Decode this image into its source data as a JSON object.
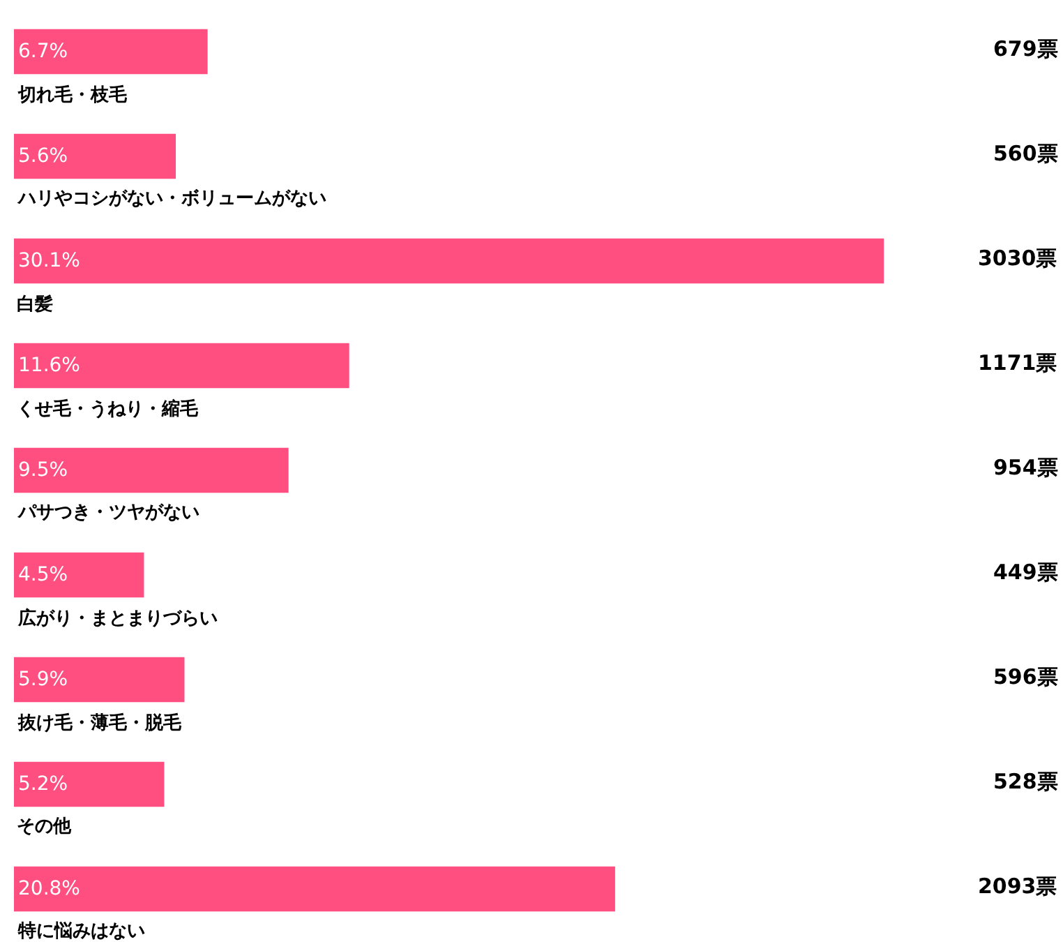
{
  "chart_data": {
    "type": "bar",
    "orientation": "horizontal",
    "tick_labels": false,
    "categories": [
      "切れ毛・枝毛",
      "ハリやコシがない・ボリュームがない",
      "白髪",
      "くせ毛・うねり・縮毛",
      "パサつき・ツヤがない",
      "広がり・まとまりづらい",
      "抜け毛・薄毛・脱毛",
      "その他",
      "特に悩みはない"
    ],
    "values": [
      6.7,
      5.6,
      30.1,
      11.6,
      9.5,
      4.5,
      5.9,
      5.2,
      20.8
    ],
    "value_labels": [
      "6.7%",
      "5.6%",
      "30.1%",
      "11.6%",
      "9.5%",
      "4.5%",
      "5.9%",
      "5.2%",
      "20.8%"
    ],
    "color": "#ff4f80",
    "xlim": [
      0,
      36.2
    ],
    "annotations": [
      "679票",
      "560票",
      "3030票",
      "1171票",
      "954票",
      "449票",
      "596票",
      "528票",
      "2093票"
    ]
  }
}
